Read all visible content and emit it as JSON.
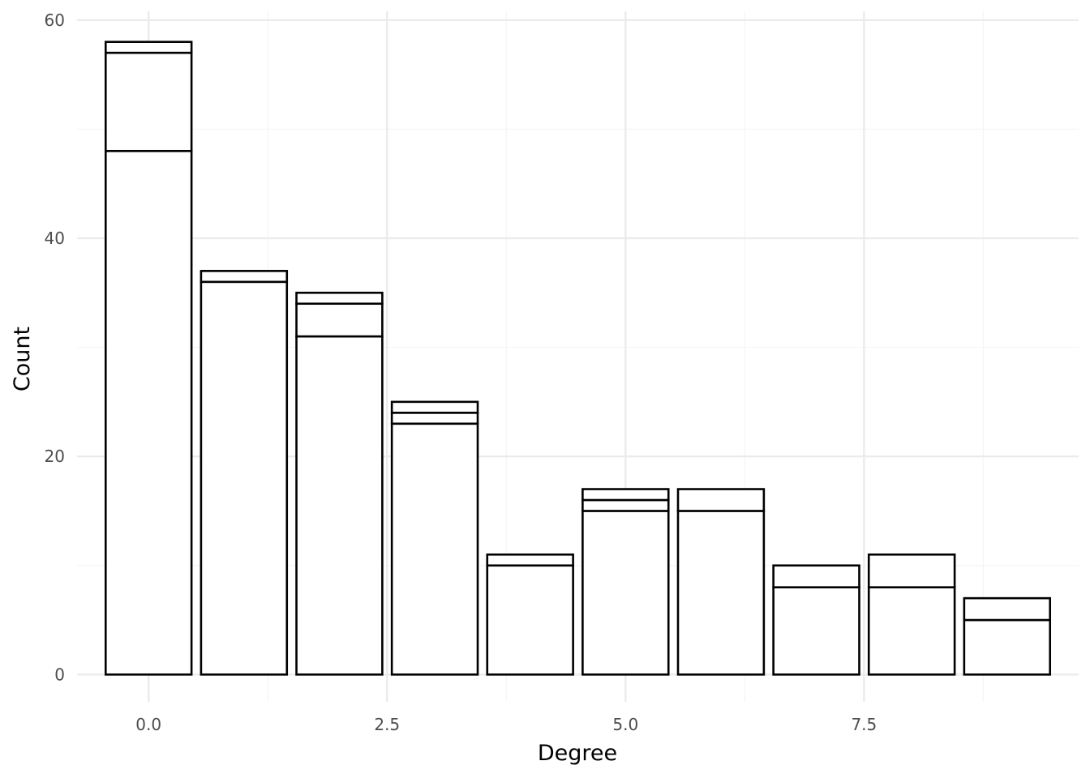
{
  "chart_data": {
    "type": "bar",
    "stacked": true,
    "xlabel": "Degree",
    "ylabel": "Count",
    "x": [
      0,
      1,
      2,
      3,
      4,
      5,
      6,
      7,
      8,
      9
    ],
    "segment_boundaries": [
      [
        48,
        57,
        58
      ],
      [
        36,
        37
      ],
      [
        31,
        34,
        35
      ],
      [
        23,
        24,
        25
      ],
      [
        10,
        11
      ],
      [
        15,
        16,
        17
      ],
      [
        15,
        17
      ],
      [
        8,
        10
      ],
      [
        8,
        11
      ],
      [
        5,
        7
      ]
    ],
    "totals": [
      58,
      37,
      35,
      25,
      11,
      17,
      17,
      10,
      11,
      7
    ],
    "xlim": [
      -0.75,
      9.75
    ],
    "ylim": [
      -2.5,
      60.8
    ],
    "x_ticks": [
      "0.0",
      "2.5",
      "5.0",
      "7.5"
    ],
    "x_tick_values": [
      0,
      2.5,
      5,
      7.5
    ],
    "x_minor_ticks": [
      1.25,
      3.75,
      6.25,
      8.75
    ],
    "y_ticks": [
      "0",
      "20",
      "40",
      "60"
    ],
    "y_tick_values": [
      0,
      20,
      40,
      60
    ],
    "y_minor_ticks": [
      10,
      30,
      50
    ],
    "grid": true,
    "legend": "none",
    "colors": {
      "bar_fill": "#ffffff",
      "bar_stroke": "#000000",
      "grid_major": "#ebebeb",
      "grid_minor": "#f5f5f5",
      "tick_text": "#4d4d4d"
    }
  }
}
